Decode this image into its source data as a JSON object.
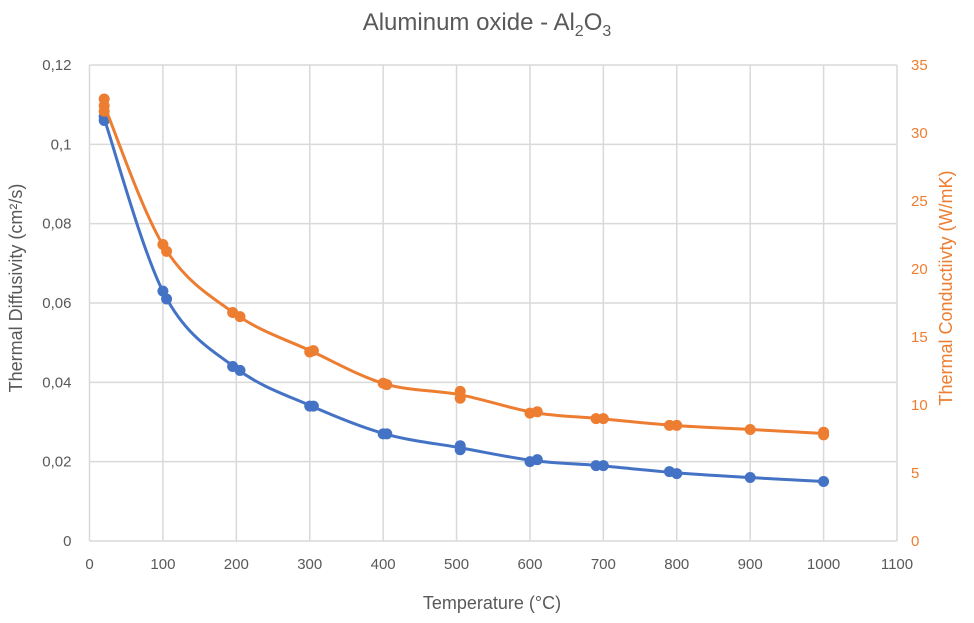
{
  "chart_data": {
    "type": "scatter",
    "title": {
      "prefix": "Aluminum oxide - Al",
      "sub1": "2",
      "mid": "O",
      "sub2": "3"
    },
    "xlabel": "Temperature (°C)",
    "ylabel": "Thermal Diffusivity (cm²/s)",
    "y2label": "Thermal Conductiivty (W/mK)",
    "xlim": [
      0,
      1100
    ],
    "ylim": [
      0,
      0.12
    ],
    "y2lim": [
      0,
      35
    ],
    "grid": true,
    "xticks": [
      "0",
      "100",
      "200",
      "300",
      "400",
      "500",
      "600",
      "700",
      "800",
      "900",
      "1000",
      "1100"
    ],
    "yticks": [
      "0",
      "0,02",
      "0,04",
      "0,06",
      "0,08",
      "0,1",
      "0,12"
    ],
    "y2ticks": [
      "0",
      "5",
      "10",
      "15",
      "20",
      "25",
      "30",
      "35"
    ],
    "colors": {
      "diffusivity": "#4472c4",
      "conductivity": "#ed7d31",
      "grid": "#d9d9d9",
      "text": "#595959"
    },
    "series": [
      {
        "name": "Thermal Diffusivity",
        "axis": "left",
        "x": [
          20,
          20,
          100,
          105,
          195,
          205,
          300,
          305,
          400,
          405,
          505,
          505,
          600,
          610,
          690,
          700,
          790,
          800,
          900,
          1000
        ],
        "y": [
          0.107,
          0.106,
          0.063,
          0.061,
          0.044,
          0.043,
          0.034,
          0.034,
          0.027,
          0.027,
          0.024,
          0.023,
          0.02,
          0.0205,
          0.019,
          0.019,
          0.0175,
          0.017,
          0.016,
          0.015
        ]
      },
      {
        "name": "Thermal Conductivity",
        "axis": "right",
        "x": [
          20,
          20,
          20,
          100,
          105,
          195,
          205,
          300,
          305,
          400,
          405,
          505,
          505,
          600,
          610,
          690,
          700,
          790,
          800,
          900,
          1000,
          1000
        ],
        "y": [
          32.5,
          32.0,
          31.6,
          21.8,
          21.3,
          16.8,
          16.5,
          13.9,
          14.0,
          11.6,
          11.5,
          11.0,
          10.5,
          9.4,
          9.5,
          9.0,
          9.0,
          8.5,
          8.5,
          8.2,
          8.0,
          7.8
        ]
      }
    ]
  }
}
